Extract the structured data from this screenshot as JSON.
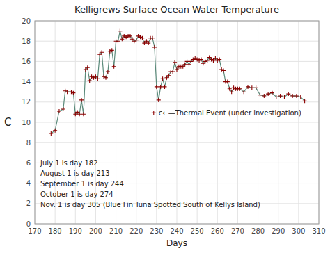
{
  "chart_data": {
    "type": "line",
    "title": "Kelligrews Surface Ocean Water Temperature",
    "x_label": "Days",
    "y_label": "C",
    "xlim": [
      170,
      310
    ],
    "ylim": [
      0,
      20
    ],
    "xticks": [
      170,
      180,
      190,
      200,
      210,
      220,
      230,
      240,
      250,
      260,
      270,
      280,
      290,
      300,
      310
    ],
    "yticks": [
      0,
      2,
      4,
      6,
      8,
      10,
      12,
      14,
      16,
      18,
      20
    ],
    "grid": true,
    "x": [
      178,
      180,
      182,
      184,
      185,
      186,
      188,
      189,
      190,
      191,
      192,
      193,
      194,
      195,
      196,
      197,
      198,
      199,
      200,
      201,
      202,
      203,
      204,
      205,
      206,
      207,
      208,
      209,
      210,
      211,
      212,
      213,
      214,
      215,
      216,
      217,
      218,
      219,
      220,
      221,
      222,
      223,
      224,
      225,
      226,
      227,
      228,
      229,
      230,
      231,
      232,
      233,
      234,
      235,
      236,
      237,
      238,
      239,
      240,
      241,
      242,
      243,
      244,
      245,
      246,
      247,
      248,
      249,
      250,
      251,
      252,
      253,
      254,
      255,
      256,
      257,
      258,
      259,
      260,
      261,
      262,
      263,
      264,
      265,
      266,
      267,
      268,
      269,
      270,
      271,
      273,
      275,
      277,
      279,
      281,
      283,
      285,
      287,
      289,
      291,
      293,
      295,
      297,
      299,
      301,
      303
    ],
    "series": [
      {
        "color": "#5a8a7a",
        "marker": "plus",
        "values": [
          8.9,
          9.2,
          11.1,
          11.3,
          13.1,
          13.0,
          13.0,
          12.9,
          10.8,
          11.0,
          10.8,
          12.2,
          10.8,
          15.2,
          15.4,
          14.1,
          14.5,
          14.4,
          14.5,
          14.3,
          16.7,
          16.9,
          14.5,
          14.4,
          15.0,
          17.0,
          17.1,
          15.5,
          18.0,
          18.0,
          19.0,
          18.2,
          18.5,
          18.4,
          18.5,
          18.5,
          18.2,
          18.0,
          18.1,
          18.5,
          18.4,
          18.3,
          17.8,
          18.0,
          17.8,
          18.3,
          18.3,
          17.4,
          13.5,
          12.2,
          13.5,
          14.3,
          13.5,
          14.4,
          14.6,
          15.0,
          15.0,
          15.9,
          15.2,
          15.5,
          15.5,
          15.5,
          15.7,
          16.0,
          15.7,
          16.0,
          16.2,
          16.3,
          16.2,
          16.1,
          16.2,
          15.8,
          16.0,
          16.1,
          16.4,
          16.2,
          16.1,
          16.3,
          16.1,
          16.2,
          15.2,
          15.1,
          14.0,
          14.0,
          13.3,
          13.0,
          13.4,
          13.3,
          13.3,
          13.3,
          13.0,
          13.5,
          13.4,
          13.4,
          12.7,
          12.6,
          12.8,
          12.9,
          12.5,
          12.6,
          12.5,
          12.8,
          12.6,
          12.6,
          12.5,
          12.1
        ]
      }
    ],
    "annotations": [
      {
        "text": "c←—Thermal Event (under investigation)",
        "x": 231,
        "y": 10.7
      },
      {
        "text": "July 1 is day 182"
      },
      {
        "text": "August 1 is day 213"
      },
      {
        "text": "September 1 is day 244"
      },
      {
        "text": "October 1 is day 274"
      },
      {
        "text": "Nov. 1 is day 305 (Blue Fin Tuna Spotted South of Kellys Island)"
      }
    ]
  }
}
